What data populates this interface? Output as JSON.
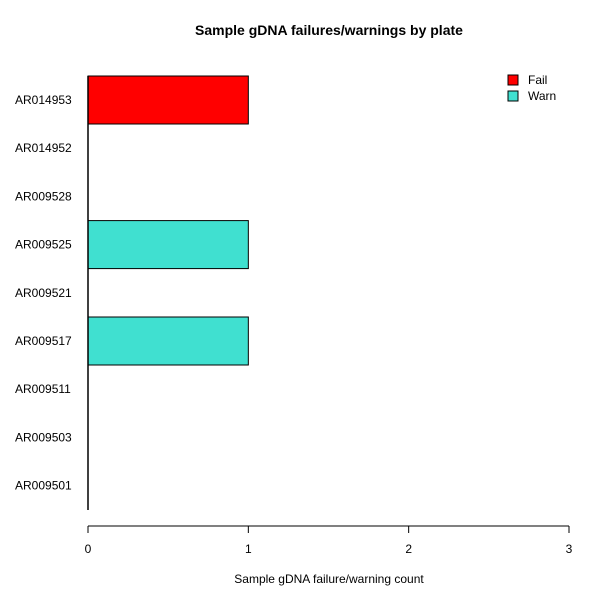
{
  "chart_data": {
    "type": "bar",
    "orientation": "horizontal",
    "stacked": true,
    "title": "Sample gDNA failures/warnings by plate",
    "xlabel": "Sample gDNA failure/warning count",
    "ylabel": "",
    "xlim": [
      0,
      3
    ],
    "xticks": [
      0,
      1,
      2,
      3
    ],
    "grid": false,
    "legend_position": "top-right",
    "categories": [
      "AR014953",
      "AR014952",
      "AR009528",
      "AR009525",
      "AR009521",
      "AR009517",
      "AR009511",
      "AR009503",
      "AR009501"
    ],
    "series": [
      {
        "name": "Fail",
        "color": "#ff0000",
        "values": [
          1,
          0,
          0,
          0,
          0,
          0,
          0,
          0,
          0
        ]
      },
      {
        "name": "Warn",
        "color": "#40e0d0",
        "values": [
          0,
          0,
          0,
          1,
          0,
          1,
          0,
          0,
          0
        ]
      }
    ]
  }
}
